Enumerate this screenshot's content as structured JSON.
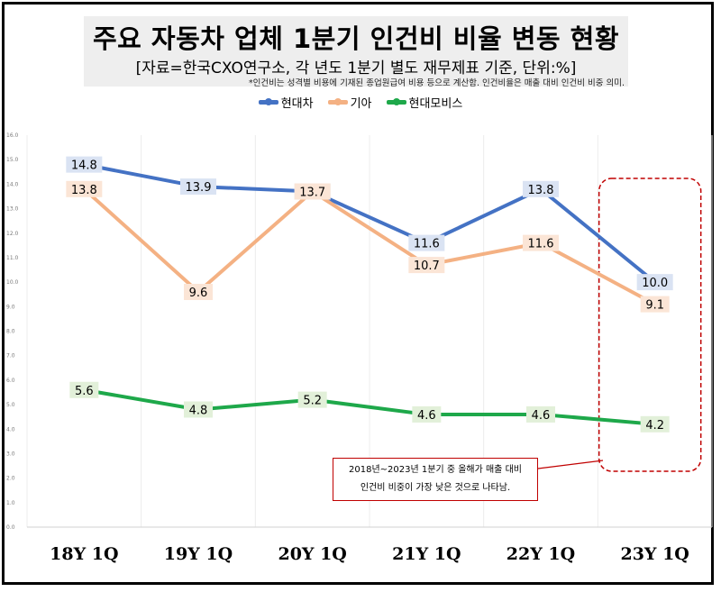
{
  "header": {
    "title": "주요 자동차 업체 1분기 인건비 비율 변동 현황",
    "subtitle": "[자료=한국CXO연구소, 각 년도 1분기 별도 재무제표 기준, 단위:%]",
    "note": "*인건비는 성격별 비용에 기재된 종업원급여 비용 등으로 계산함. 인건비율은 매출 대비 인건비 비중 의미."
  },
  "callout": {
    "line1": "2018년~2023년 1분기 중 올해가 매출 대비",
    "line2": "인건비 비중이 가장 낮은 것으로 나타남."
  },
  "chart_data": {
    "type": "line",
    "title": "주요 자동차 업체 1분기 인건비 비율 변동 현황",
    "categories": [
      "18Y 1Q",
      "19Y 1Q",
      "20Y 1Q",
      "21Y 1Q",
      "22Y 1Q",
      "23Y 1Q"
    ],
    "series": [
      {
        "name": "현대차",
        "color": "#4472c4",
        "label_bg": "#dae3f3",
        "values": [
          14.8,
          13.9,
          13.7,
          11.6,
          13.8,
          10.0
        ]
      },
      {
        "name": "기아",
        "color": "#f4b183",
        "label_bg": "#fbe5d6",
        "values": [
          13.8,
          9.6,
          13.7,
          10.7,
          11.6,
          9.1
        ]
      },
      {
        "name": "현대모비스",
        "color": "#1ea84a",
        "label_bg": "#e2f0d9",
        "values": [
          5.6,
          4.8,
          5.2,
          4.6,
          4.6,
          4.2
        ]
      }
    ],
    "ylim": [
      0,
      16
    ],
    "yticks": [
      "0.0",
      "1.0",
      "2.0",
      "3.0",
      "4.0",
      "5.0",
      "6.0",
      "7.0",
      "8.0",
      "9.0",
      "10.0",
      "11.0",
      "12.0",
      "13.0",
      "14.0",
      "15.0",
      "16.0"
    ],
    "grid": "vertical",
    "legend": "top-center",
    "highlight_category": "23Y 1Q"
  }
}
